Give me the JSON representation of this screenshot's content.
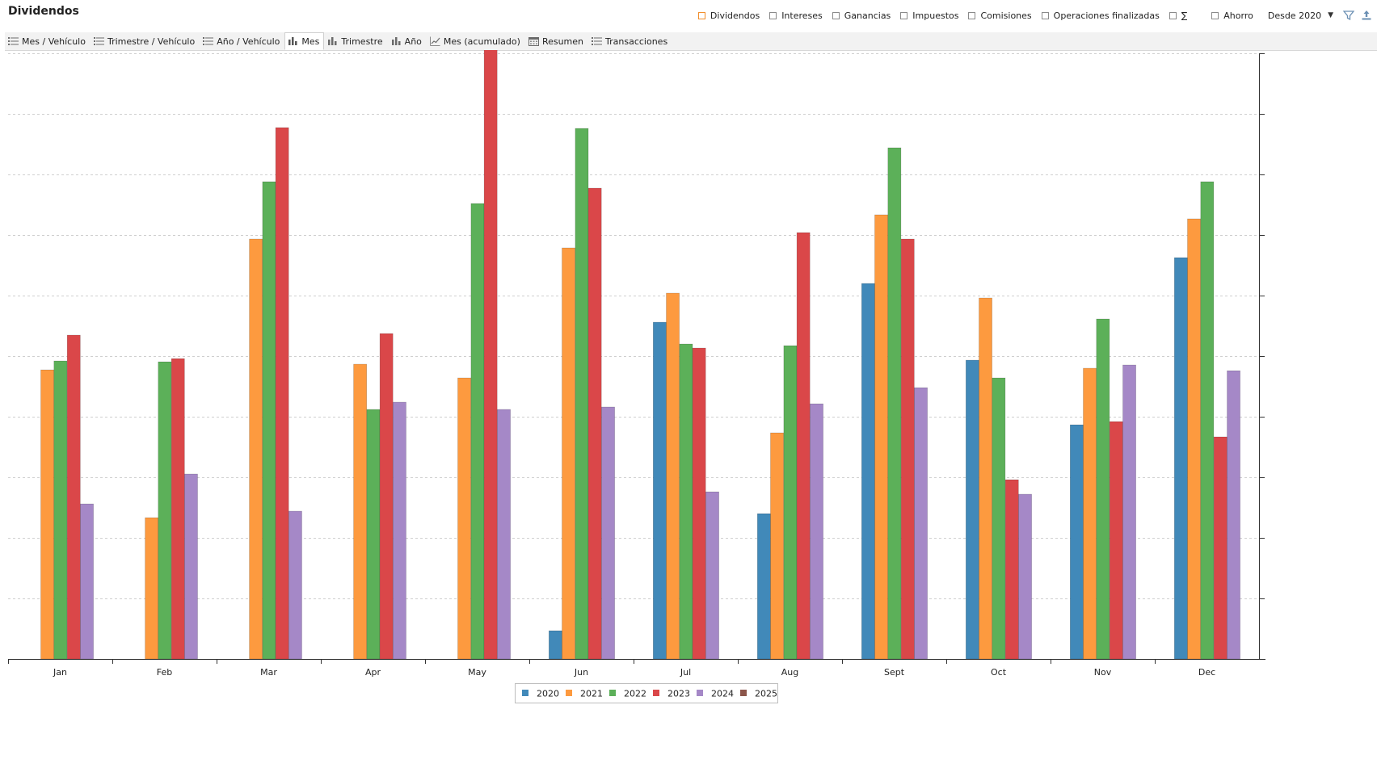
{
  "app": {
    "title": "Dividendos"
  },
  "filters": {
    "items": [
      {
        "label": "Dividendos",
        "checked": true
      },
      {
        "label": "Intereses",
        "checked": false
      },
      {
        "label": "Ganancias",
        "checked": false
      },
      {
        "label": "Impuestos",
        "checked": false
      },
      {
        "label": "Comisiones",
        "checked": false
      },
      {
        "label": "Operaciones finalizadas",
        "checked": false
      },
      {
        "label": "∑",
        "checked": false
      },
      {
        "label": "Ahorro",
        "checked": false
      }
    ],
    "since": "Desde 2020",
    "icons": [
      "filter-icon",
      "export-icon"
    ]
  },
  "tabs": [
    {
      "label": "Mes / Vehículo",
      "icon": "list-icon",
      "active": false
    },
    {
      "label": "Trimestre / Vehículo",
      "icon": "list-icon",
      "active": false
    },
    {
      "label": "Año / Vehículo",
      "icon": "list-icon",
      "active": false
    },
    {
      "label": "Mes",
      "icon": "bar-chart-icon",
      "active": true
    },
    {
      "label": "Trimestre",
      "icon": "bar-chart-icon",
      "active": false
    },
    {
      "label": "Año",
      "icon": "bar-chart-icon",
      "active": false
    },
    {
      "label": "Mes (acumulado)",
      "icon": "line-chart-icon",
      "active": false
    },
    {
      "label": "Resumen",
      "icon": "calendar-icon",
      "active": false
    },
    {
      "label": "Transacciones",
      "icon": "list-icon",
      "active": false
    }
  ],
  "colors": {
    "2020": "#4189b9",
    "2021": "#fd9a3f",
    "2022": "#5cb059",
    "2023": "#da4749",
    "2024": "#a588c7",
    "2025": "#8c564b"
  },
  "chart_data": {
    "type": "bar",
    "categories": [
      "Jan",
      "Feb",
      "Mar",
      "Apr",
      "May",
      "Jun",
      "Jul",
      "Aug",
      "Sept",
      "Oct",
      "Nov",
      "Dec"
    ],
    "series": [
      {
        "name": "2020",
        "values": [
          0,
          0,
          0,
          0,
          0,
          3.5,
          41.7,
          18.0,
          46.5,
          37.0,
          29.0,
          49.7
        ]
      },
      {
        "name": "2021",
        "values": [
          35.8,
          17.5,
          52.0,
          36.5,
          34.8,
          50.9,
          45.3,
          28.0,
          55.0,
          44.7,
          36.0,
          54.5
        ]
      },
      {
        "name": "2022",
        "values": [
          36.9,
          36.8,
          59.1,
          30.9,
          56.4,
          65.7,
          39.0,
          38.8,
          63.3,
          34.8,
          42.1,
          59.1
        ]
      },
      {
        "name": "2023",
        "values": [
          40.1,
          37.2,
          65.8,
          40.3,
          75.6,
          58.3,
          38.5,
          52.8,
          52.0,
          22.2,
          29.4,
          27.5
        ]
      },
      {
        "name": "2024",
        "values": [
          19.2,
          22.9,
          18.3,
          31.8,
          30.9,
          31.2,
          20.7,
          31.6,
          33.6,
          20.4,
          36.4,
          35.7
        ]
      },
      {
        "name": "2025",
        "values": [
          0,
          0,
          0,
          0,
          0,
          0,
          0,
          0,
          0,
          0,
          0,
          0
        ]
      }
    ],
    "ylim": [
      0,
      75
    ],
    "grid": true,
    "legend": "bottom-center"
  }
}
